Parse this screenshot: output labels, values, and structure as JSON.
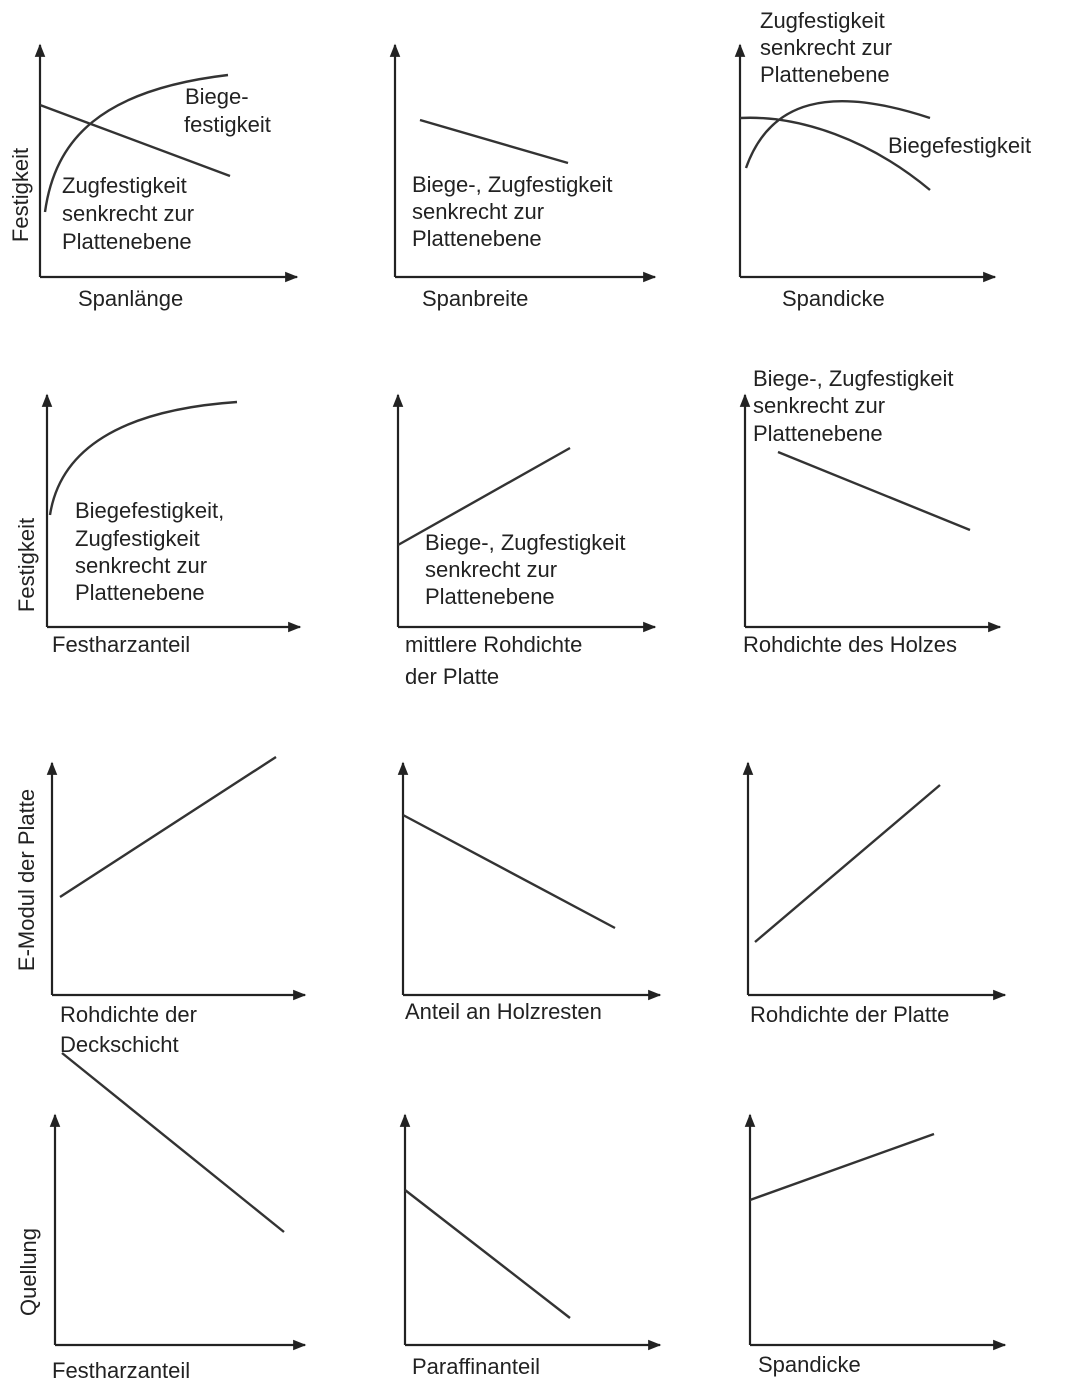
{
  "panels": [
    {
      "y_label": "Festigkeit",
      "x_label": [
        "Spanlänge"
      ],
      "notes": [
        [
          "Biege-",
          "festigkeit"
        ],
        [
          "Zugfestigkeit",
          "senkrecht zur",
          "Plattenebene"
        ]
      ]
    },
    {
      "x_label": [
        "Spanbreite"
      ],
      "notes": [
        [
          "Biege-, Zugfestigkeit",
          "senkrecht zur",
          "Plattenebene"
        ]
      ]
    },
    {
      "x_label": [
        "Spandicke"
      ],
      "notes": [
        [
          "Zugfestigkeit",
          "senkrecht zur",
          "Plattenebene"
        ],
        [
          "Biegefestigkeit"
        ]
      ]
    },
    {
      "y_label": "Festigkeit",
      "x_label": [
        "Festharzanteil"
      ],
      "notes": [
        [
          "Biegefestigkeit,",
          "Zugfestigkeit",
          "senkrecht zur",
          "Plattenebene"
        ]
      ]
    },
    {
      "x_label": [
        "mittlere Rohdichte",
        "der Platte"
      ],
      "notes": [
        [
          "Biege-, Zugfestigkeit",
          "senkrecht zur",
          "Plattenebene"
        ]
      ]
    },
    {
      "x_label": [
        "Rohdichte des Holzes"
      ],
      "notes": [
        [
          "Biege-, Zugfestigkeit",
          "senkrecht zur",
          "Plattenebene"
        ]
      ]
    },
    {
      "y_label": "E-Modul der Platte",
      "x_label": [
        "Rohdichte der",
        "Deckschicht"
      ]
    },
    {
      "x_label": [
        "Anteil an Holzresten"
      ]
    },
    {
      "x_label": [
        "Rohdichte der Platte"
      ]
    },
    {
      "y_label": "Quellung",
      "x_label": [
        "Festharzanteil"
      ]
    },
    {
      "x_label": [
        "Paraffinanteil"
      ]
    },
    {
      "x_label": [
        "Spandicke"
      ]
    }
  ]
}
